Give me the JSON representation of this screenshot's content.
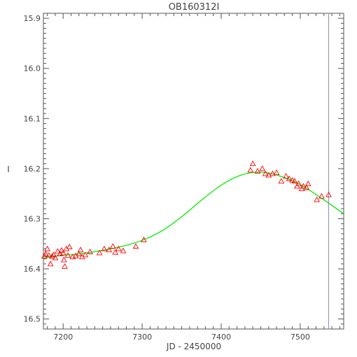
{
  "chart_data": {
    "type": "scatter",
    "title": "OB160312I",
    "xlabel": "JD - 2450000",
    "ylabel": "I",
    "xlim": [
      7175,
      7555
    ],
    "ylim": [
      16.52,
      15.89
    ],
    "y_inverted": true,
    "x_ticks": [
      7200,
      7300,
      7400,
      7500
    ],
    "y_ticks": [
      15.9,
      16.0,
      16.1,
      16.2,
      16.3,
      16.4,
      16.5
    ],
    "x_tick_labels": [
      "7200",
      "7300",
      "7400",
      "7500"
    ],
    "y_tick_labels": [
      "15.9",
      "16.0",
      "16.1",
      "16.2",
      "16.3",
      "16.4",
      "16.5"
    ],
    "grid": false,
    "vertical_line_x": 7536,
    "colors": {
      "points": "#ff0000",
      "model": "#00ee00",
      "vline": "#8888bb",
      "axes": "#555555"
    },
    "series": [
      {
        "type": "scatter",
        "marker": "triangle",
        "points": [
          [
            7176,
            16.375
          ],
          [
            7178,
            16.37
          ],
          [
            7180,
            16.36
          ],
          [
            7182,
            16.373
          ],
          [
            7184,
            16.39
          ],
          [
            7186,
            16.375
          ],
          [
            7188,
            16.372
          ],
          [
            7190,
            16.378
          ],
          [
            7193,
            16.365
          ],
          [
            7196,
            16.37
          ],
          [
            7198,
            16.363
          ],
          [
            7200,
            16.368
          ],
          [
            7201,
            16.382
          ],
          [
            7202,
            16.395
          ],
          [
            7204,
            16.36
          ],
          [
            7206,
            16.373
          ],
          [
            7208,
            16.356
          ],
          [
            7212,
            16.376
          ],
          [
            7216,
            16.374
          ],
          [
            7220,
            16.37
          ],
          [
            7222,
            16.362
          ],
          [
            7224,
            16.376
          ],
          [
            7228,
            16.372
          ],
          [
            7234,
            16.366
          ],
          [
            7246,
            16.368
          ],
          [
            7252,
            16.36
          ],
          [
            7258,
            16.362
          ],
          [
            7263,
            16.355
          ],
          [
            7266,
            16.367
          ],
          [
            7270,
            16.36
          ],
          [
            7276,
            16.364
          ],
          [
            7292,
            16.355
          ],
          [
            7302,
            16.342
          ],
          [
            7437,
            16.203
          ],
          [
            7440,
            16.19
          ],
          [
            7446,
            16.205
          ],
          [
            7452,
            16.2
          ],
          [
            7456,
            16.21
          ],
          [
            7460,
            16.213
          ],
          [
            7465,
            16.21
          ],
          [
            7470,
            16.208
          ],
          [
            7476,
            16.225
          ],
          [
            7482,
            16.215
          ],
          [
            7486,
            16.22
          ],
          [
            7490,
            16.223
          ],
          [
            7493,
            16.225
          ],
          [
            7496,
            16.235
          ],
          [
            7498,
            16.23
          ],
          [
            7502,
            16.24
          ],
          [
            7504,
            16.235
          ],
          [
            7508,
            16.238
          ],
          [
            7510,
            16.23
          ],
          [
            7521,
            16.262
          ],
          [
            7527,
            16.255
          ],
          [
            7536,
            16.252
          ]
        ]
      },
      {
        "type": "line",
        "points": [
          [
            7175,
            16.376
          ],
          [
            7200,
            16.373
          ],
          [
            7225,
            16.369
          ],
          [
            7250,
            16.363
          ],
          [
            7275,
            16.355
          ],
          [
            7300,
            16.343
          ],
          [
            7325,
            16.324
          ],
          [
            7350,
            16.296
          ],
          [
            7375,
            16.263
          ],
          [
            7400,
            16.233
          ],
          [
            7425,
            16.213
          ],
          [
            7450,
            16.207
          ],
          [
            7475,
            16.215
          ],
          [
            7500,
            16.232
          ],
          [
            7525,
            16.257
          ],
          [
            7555,
            16.29
          ]
        ]
      }
    ]
  }
}
